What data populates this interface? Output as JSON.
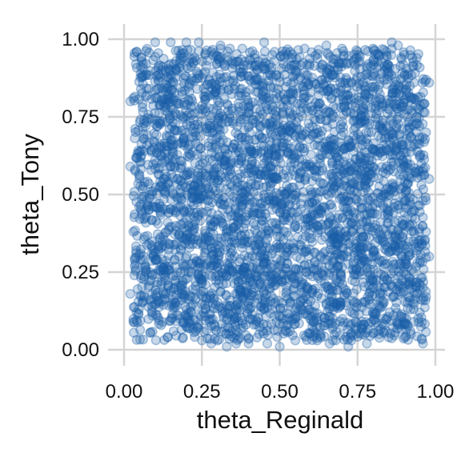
{
  "chart_data": {
    "type": "scatter",
    "title": "",
    "xlabel": "theta_Reginald",
    "ylabel": "theta_Tony",
    "xlim": [
      0,
      1
    ],
    "ylim": [
      0,
      1
    ],
    "x_ticks": [
      "0.00",
      "0.25",
      "0.50",
      "0.75",
      "1.00"
    ],
    "y_ticks": [
      "0.00",
      "0.25",
      "0.50",
      "0.75",
      "1.00"
    ],
    "x_tick_values": [
      0,
      0.25,
      0.5,
      0.75,
      1
    ],
    "y_tick_values": [
      0,
      0.25,
      0.5,
      0.75,
      1
    ],
    "grid": true,
    "legend": "none",
    "point_color": "#1a5fa8",
    "point_alpha": 0.25,
    "points": [
      [
        0.02,
        0.8
      ],
      [
        0.03,
        0.81
      ],
      [
        0.04,
        0.96
      ],
      [
        0.02,
        0.59
      ],
      [
        0.03,
        0.38
      ],
      [
        0.02,
        0.18
      ],
      [
        0.03,
        0.09
      ],
      [
        0.04,
        0.12
      ],
      [
        0.05,
        0.56
      ],
      [
        0.06,
        0.88
      ],
      [
        0.07,
        0.72
      ],
      [
        0.06,
        0.29
      ],
      [
        0.08,
        0.45
      ],
      [
        0.09,
        0.12
      ],
      [
        0.1,
        0.99
      ],
      [
        0.11,
        0.87
      ],
      [
        0.12,
        0.65
      ],
      [
        0.09,
        0.33
      ],
      [
        0.12,
        0.22
      ],
      [
        0.14,
        0.04
      ],
      [
        0.15,
        0.99
      ],
      [
        0.16,
        0.92
      ],
      [
        0.15,
        0.78
      ],
      [
        0.17,
        0.55
      ],
      [
        0.14,
        0.41
      ],
      [
        0.18,
        0.1
      ],
      [
        0.2,
        0.99
      ],
      [
        0.21,
        0.83
      ],
      [
        0.22,
        0.49
      ],
      [
        0.19,
        0.27
      ],
      [
        0.23,
        0.06
      ],
      [
        0.24,
        0.99
      ],
      [
        0.26,
        0.95
      ],
      [
        0.25,
        0.03
      ],
      [
        0.28,
        0.02
      ],
      [
        0.3,
        0.03
      ],
      [
        0.31,
        0.98
      ],
      [
        0.33,
        0.01
      ],
      [
        0.34,
        0.97
      ],
      [
        0.36,
        0.02
      ],
      [
        0.38,
        0.97
      ],
      [
        0.4,
        0.02
      ],
      [
        0.42,
        0.95
      ],
      [
        0.45,
        0.99
      ],
      [
        0.46,
        0.02
      ],
      [
        0.5,
        0.01
      ],
      [
        0.52,
        0.96
      ],
      [
        0.55,
        0.03
      ],
      [
        0.58,
        0.97
      ],
      [
        0.62,
        0.03
      ],
      [
        0.65,
        0.98
      ],
      [
        0.66,
        0.02
      ],
      [
        0.7,
        0.97
      ],
      [
        0.72,
        0.01
      ],
      [
        0.73,
        0.03
      ],
      [
        0.75,
        0.96
      ],
      [
        0.78,
        0.02
      ],
      [
        0.8,
        0.97
      ],
      [
        0.82,
        0.05
      ],
      [
        0.86,
        0.99
      ],
      [
        0.88,
        0.98
      ],
      [
        0.85,
        0.04
      ],
      [
        0.9,
        0.95
      ],
      [
        0.92,
        0.06
      ],
      [
        0.93,
        0.09
      ],
      [
        0.95,
        0.12
      ],
      [
        0.96,
        0.02
      ],
      [
        0.94,
        0.94
      ],
      [
        0.97,
        0.87
      ],
      [
        0.98,
        0.86
      ],
      [
        0.96,
        0.79
      ],
      [
        0.97,
        0.7
      ],
      [
        0.95,
        0.62
      ],
      [
        0.98,
        0.55
      ],
      [
        0.96,
        0.48
      ],
      [
        0.97,
        0.38
      ],
      [
        0.98,
        0.3
      ],
      [
        0.96,
        0.2
      ],
      [
        0.94,
        0.18
      ],
      [
        0.95,
        0.28
      ],
      [
        0.93,
        0.45
      ],
      [
        0.94,
        0.75
      ],
      [
        0.5,
        0.5
      ],
      [
        0.45,
        0.6
      ],
      [
        0.55,
        0.4
      ]
    ]
  }
}
